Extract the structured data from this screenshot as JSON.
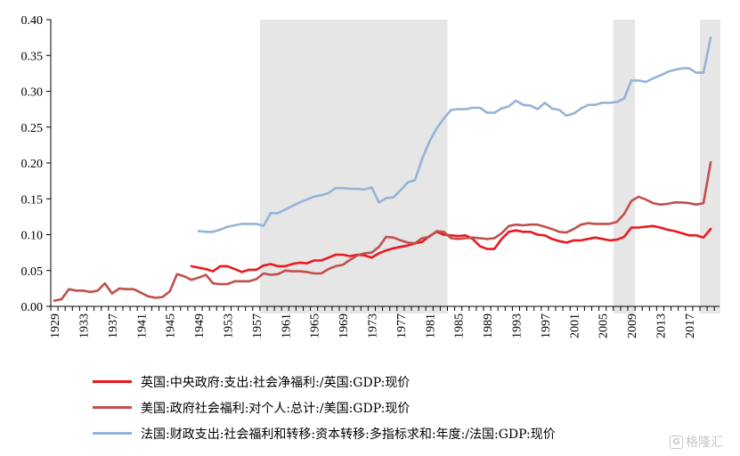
{
  "chart_data": {
    "type": "line",
    "title": "",
    "xlabel": "",
    "ylabel": "",
    "xlim": [
      1929,
      2021
    ],
    "ylim": [
      0,
      0.4
    ],
    "y_ticks": [
      "0.00",
      "0.05",
      "0.10",
      "0.15",
      "0.20",
      "0.25",
      "0.30",
      "0.35",
      "0.40"
    ],
    "x_ticks": [
      "1929",
      "1933",
      "1937",
      "1941",
      "1945",
      "1949",
      "1953",
      "1957",
      "1961",
      "1965",
      "1969",
      "1973",
      "1977",
      "1981",
      "1985",
      "1989",
      "1993",
      "1997",
      "2001",
      "2005",
      "2009",
      "2013",
      "2017"
    ],
    "grid": false,
    "legend_position": "bottom",
    "shaded_periods": [
      [
        1958,
        1983
      ],
      [
        2007,
        2009
      ],
      [
        2019,
        2021
      ]
    ],
    "series": [
      {
        "name": "英国:中央政府:支出:社会净福利:/英国:GDP:现价",
        "color": "#e8191f",
        "x": [
          1948,
          1949,
          1950,
          1951,
          1952,
          1953,
          1954,
          1955,
          1956,
          1957,
          1958,
          1959,
          1960,
          1961,
          1962,
          1963,
          1964,
          1965,
          1966,
          1967,
          1968,
          1969,
          1970,
          1971,
          1972,
          1973,
          1974,
          1975,
          1976,
          1977,
          1978,
          1979,
          1980,
          1981,
          1982,
          1983,
          1984,
          1985,
          1986,
          1987,
          1988,
          1989,
          1990,
          1991,
          1992,
          1993,
          1994,
          1995,
          1996,
          1997,
          1998,
          1999,
          2000,
          2001,
          2002,
          2003,
          2004,
          2005,
          2006,
          2007,
          2008,
          2009,
          2010,
          2011,
          2012,
          2013,
          2014,
          2015,
          2016,
          2017,
          2018,
          2019,
          2020
        ],
        "values": [
          0.056,
          0.054,
          0.052,
          0.049,
          0.056,
          0.056,
          0.052,
          0.048,
          0.051,
          0.051,
          0.057,
          0.059,
          0.056,
          0.056,
          0.059,
          0.061,
          0.06,
          0.064,
          0.064,
          0.068,
          0.072,
          0.072,
          0.07,
          0.072,
          0.071,
          0.068,
          0.074,
          0.078,
          0.081,
          0.083,
          0.085,
          0.088,
          0.09,
          0.098,
          0.104,
          0.1,
          0.099,
          0.098,
          0.099,
          0.094,
          0.084,
          0.08,
          0.08,
          0.094,
          0.104,
          0.106,
          0.104,
          0.104,
          0.1,
          0.099,
          0.094,
          0.091,
          0.089,
          0.092,
          0.092,
          0.094,
          0.096,
          0.094,
          0.092,
          0.093,
          0.097,
          0.11,
          0.11,
          0.111,
          0.112,
          0.11,
          0.107,
          0.105,
          0.102,
          0.099,
          0.099,
          0.096,
          0.108
        ]
      },
      {
        "name": "美国:政府社会福利:对个人:总计:/美国:GDP:现价",
        "color": "#c0504d",
        "x": [
          1929,
          1930,
          1931,
          1932,
          1933,
          1934,
          1935,
          1936,
          1937,
          1938,
          1939,
          1940,
          1941,
          1942,
          1943,
          1944,
          1945,
          1946,
          1947,
          1948,
          1949,
          1950,
          1951,
          1952,
          1953,
          1954,
          1955,
          1956,
          1957,
          1958,
          1959,
          1960,
          1961,
          1962,
          1963,
          1964,
          1965,
          1966,
          1967,
          1968,
          1969,
          1970,
          1971,
          1972,
          1973,
          1974,
          1975,
          1976,
          1977,
          1978,
          1979,
          1980,
          1981,
          1982,
          1983,
          1984,
          1985,
          1986,
          1987,
          1988,
          1989,
          1990,
          1991,
          1992,
          1993,
          1994,
          1995,
          1996,
          1997,
          1998,
          1999,
          2000,
          2001,
          2002,
          2003,
          2004,
          2005,
          2006,
          2007,
          2008,
          2009,
          2010,
          2011,
          2012,
          2013,
          2014,
          2015,
          2016,
          2017,
          2018,
          2019,
          2020
        ],
        "values": [
          0.008,
          0.01,
          0.024,
          0.022,
          0.022,
          0.02,
          0.022,
          0.032,
          0.018,
          0.025,
          0.024,
          0.024,
          0.019,
          0.014,
          0.012,
          0.013,
          0.021,
          0.045,
          0.042,
          0.037,
          0.04,
          0.044,
          0.032,
          0.031,
          0.031,
          0.035,
          0.035,
          0.035,
          0.038,
          0.046,
          0.044,
          0.045,
          0.05,
          0.049,
          0.049,
          0.048,
          0.046,
          0.046,
          0.052,
          0.056,
          0.058,
          0.065,
          0.071,
          0.074,
          0.075,
          0.083,
          0.097,
          0.096,
          0.092,
          0.089,
          0.088,
          0.095,
          0.097,
          0.105,
          0.104,
          0.095,
          0.094,
          0.095,
          0.096,
          0.095,
          0.094,
          0.095,
          0.102,
          0.112,
          0.114,
          0.113,
          0.114,
          0.114,
          0.111,
          0.108,
          0.104,
          0.103,
          0.108,
          0.114,
          0.116,
          0.115,
          0.115,
          0.115,
          0.118,
          0.129,
          0.147,
          0.153,
          0.149,
          0.144,
          0.142,
          0.143,
          0.145,
          0.145,
          0.144,
          0.142,
          0.144,
          0.201
        ]
      },
      {
        "name": "法国:财政支出:社会福利和转移:资本转移:多指标求和:年度:/法国:GDP:现价",
        "color": "#95b3d7",
        "x": [
          1949,
          1950,
          1951,
          1952,
          1953,
          1954,
          1955,
          1956,
          1957,
          1958,
          1959,
          1960,
          1961,
          1962,
          1963,
          1964,
          1965,
          1966,
          1967,
          1968,
          1969,
          1970,
          1971,
          1972,
          1973,
          1974,
          1975,
          1976,
          1977,
          1978,
          1979,
          1980,
          1981,
          1982,
          1983,
          1984,
          1985,
          1986,
          1987,
          1988,
          1989,
          1990,
          1991,
          1992,
          1993,
          1994,
          1995,
          1996,
          1997,
          1998,
          1999,
          2000,
          2001,
          2002,
          2003,
          2004,
          2005,
          2006,
          2007,
          2008,
          2009,
          2010,
          2011,
          2012,
          2013,
          2014,
          2015,
          2016,
          2017,
          2018,
          2019,
          2020
        ],
        "values": [
          0.105,
          0.104,
          0.104,
          0.107,
          0.111,
          0.113,
          0.115,
          0.115,
          0.115,
          0.112,
          0.13,
          0.13,
          0.135,
          0.14,
          0.145,
          0.149,
          0.153,
          0.155,
          0.158,
          0.165,
          0.165,
          0.164,
          0.164,
          0.163,
          0.166,
          0.145,
          0.151,
          0.152,
          0.162,
          0.173,
          0.176,
          0.206,
          0.23,
          0.248,
          0.262,
          0.274,
          0.275,
          0.275,
          0.277,
          0.277,
          0.27,
          0.27,
          0.276,
          0.279,
          0.287,
          0.281,
          0.28,
          0.275,
          0.284,
          0.276,
          0.274,
          0.266,
          0.269,
          0.276,
          0.281,
          0.281,
          0.284,
          0.284,
          0.285,
          0.29,
          0.315,
          0.315,
          0.313,
          0.318,
          0.322,
          0.327,
          0.33,
          0.332,
          0.332,
          0.326,
          0.326,
          0.375
        ]
      }
    ]
  },
  "watermark": "格隆汇"
}
